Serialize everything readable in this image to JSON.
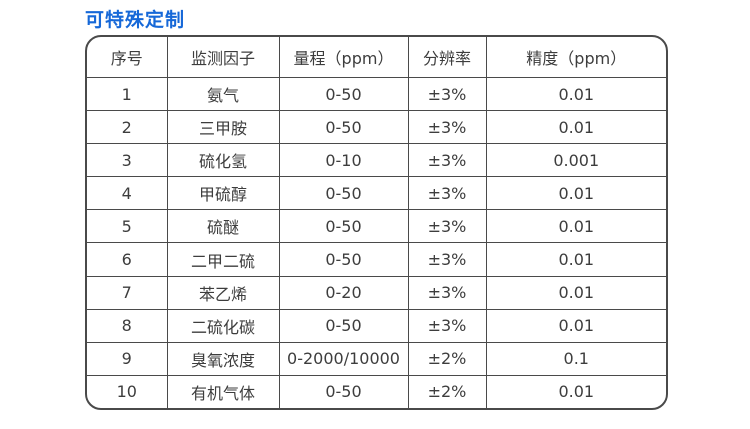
{
  "page": {
    "title": "可特殊定制"
  },
  "colors": {
    "title": "#1668d8",
    "border": "#4a4a4a",
    "text": "#3d3d3d"
  },
  "table": {
    "headers": [
      "序号",
      "监测因子",
      "量程（ppm）",
      "分辨率",
      "精度（ppm）"
    ],
    "rows": [
      [
        "1",
        "氨气",
        "0-50",
        "±3%",
        "0.01"
      ],
      [
        "2",
        "三甲胺",
        "0-50",
        "±3%",
        "0.01"
      ],
      [
        "3",
        "硫化氢",
        "0-10",
        "±3%",
        "0.001"
      ],
      [
        "4",
        "甲硫醇",
        "0-50",
        "±3%",
        "0.01"
      ],
      [
        "5",
        "硫醚",
        "0-50",
        "±3%",
        "0.01"
      ],
      [
        "6",
        "二甲二硫",
        "0-50",
        "±3%",
        "0.01"
      ],
      [
        "7",
        "苯乙烯",
        "0-20",
        "±3%",
        "0.01"
      ],
      [
        "8",
        "二硫化碳",
        "0-50",
        "±3%",
        "0.01"
      ],
      [
        "9",
        "臭氧浓度",
        "0-2000/10000",
        "±2%",
        "0.1"
      ],
      [
        "10",
        "有机气体",
        "0-50",
        "±2%",
        "0.01"
      ]
    ]
  }
}
